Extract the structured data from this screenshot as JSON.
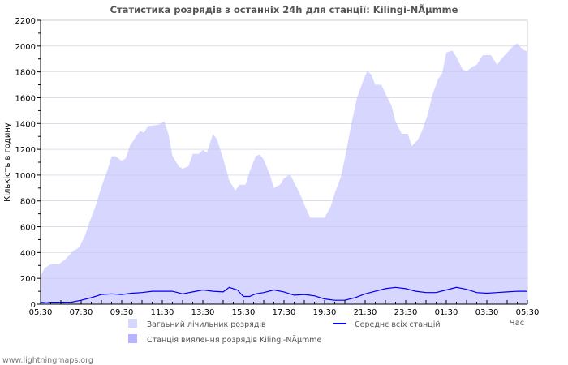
{
  "chart_data": {
    "type": "area",
    "title": "Статистика розрядів з останніх 24h для станції: Kilingi-NÃµmme",
    "xlabel": "Час",
    "ylabel": "Кількість в годину",
    "ylim": [
      0,
      2200
    ],
    "yticks": [
      0,
      200,
      400,
      600,
      800,
      1000,
      1200,
      1400,
      1600,
      1800,
      2000,
      2200
    ],
    "xtick_labels": [
      "05:30",
      "07:30",
      "09:30",
      "11:30",
      "13:30",
      "15:30",
      "17:30",
      "19:30",
      "21:30",
      "23:30",
      "01:30",
      "03:30",
      "05:30"
    ],
    "x_unit": "hours since 05:30",
    "xlim": [
      0,
      24
    ],
    "grid": true,
    "colors": {
      "total": "#d6d6ff",
      "station": "#b4b4ff",
      "average": "#0000ee"
    },
    "series": [
      {
        "name": "Загаьний лічильник розрядів",
        "kind": "area",
        "points": [
          [
            0,
            220
          ],
          [
            0.2,
            280
          ],
          [
            0.5,
            310
          ],
          [
            0.9,
            310
          ],
          [
            1.2,
            345
          ],
          [
            1.6,
            410
          ],
          [
            1.9,
            440
          ],
          [
            2.2,
            535
          ],
          [
            2.4,
            630
          ],
          [
            2.7,
            755
          ],
          [
            3.0,
            910
          ],
          [
            3.3,
            1040
          ],
          [
            3.5,
            1145
          ],
          [
            3.7,
            1145
          ],
          [
            4.0,
            1110
          ],
          [
            4.2,
            1130
          ],
          [
            4.4,
            1225
          ],
          [
            4.7,
            1300
          ],
          [
            4.9,
            1340
          ],
          [
            5.1,
            1330
          ],
          [
            5.3,
            1380
          ],
          [
            5.8,
            1390
          ],
          [
            6.1,
            1415
          ],
          [
            6.3,
            1320
          ],
          [
            6.5,
            1150
          ],
          [
            6.8,
            1070
          ],
          [
            7.0,
            1050
          ],
          [
            7.3,
            1070
          ],
          [
            7.5,
            1165
          ],
          [
            7.8,
            1165
          ],
          [
            8.0,
            1195
          ],
          [
            8.2,
            1175
          ],
          [
            8.5,
            1320
          ],
          [
            8.7,
            1275
          ],
          [
            9.0,
            1130
          ],
          [
            9.3,
            960
          ],
          [
            9.6,
            880
          ],
          [
            9.8,
            925
          ],
          [
            10.1,
            925
          ],
          [
            10.3,
            1025
          ],
          [
            10.6,
            1145
          ],
          [
            10.8,
            1160
          ],
          [
            11.0,
            1120
          ],
          [
            11.3,
            1005
          ],
          [
            11.5,
            900
          ],
          [
            11.8,
            925
          ],
          [
            12.0,
            975
          ],
          [
            12.3,
            1005
          ],
          [
            12.5,
            945
          ],
          [
            12.8,
            850
          ],
          [
            13.1,
            735
          ],
          [
            13.3,
            670
          ],
          [
            13.6,
            670
          ],
          [
            14.0,
            670
          ],
          [
            14.3,
            755
          ],
          [
            14.5,
            860
          ],
          [
            14.8,
            985
          ],
          [
            15.0,
            1130
          ],
          [
            15.3,
            1380
          ],
          [
            15.6,
            1600
          ],
          [
            15.9,
            1730
          ],
          [
            16.1,
            1805
          ],
          [
            16.3,
            1780
          ],
          [
            16.5,
            1700
          ],
          [
            16.8,
            1700
          ],
          [
            17.1,
            1600
          ],
          [
            17.3,
            1540
          ],
          [
            17.5,
            1415
          ],
          [
            17.8,
            1320
          ],
          [
            18.1,
            1320
          ],
          [
            18.3,
            1225
          ],
          [
            18.6,
            1275
          ],
          [
            18.8,
            1340
          ],
          [
            19.1,
            1475
          ],
          [
            19.3,
            1615
          ],
          [
            19.6,
            1745
          ],
          [
            19.8,
            1790
          ],
          [
            20.0,
            1950
          ],
          [
            20.3,
            1965
          ],
          [
            20.5,
            1915
          ],
          [
            20.8,
            1820
          ],
          [
            21.0,
            1805
          ],
          [
            21.3,
            1840
          ],
          [
            21.5,
            1855
          ],
          [
            21.8,
            1930
          ],
          [
            22.2,
            1930
          ],
          [
            22.5,
            1855
          ],
          [
            22.8,
            1915
          ],
          [
            23.1,
            1965
          ],
          [
            23.3,
            2000
          ],
          [
            23.5,
            2020
          ],
          [
            23.8,
            1970
          ],
          [
            24,
            1960
          ]
        ]
      },
      {
        "name": "Станція виялення розрядів Kilingi-NÃµmme",
        "kind": "area",
        "points": []
      },
      {
        "name": "Середнє всіх станцій",
        "kind": "line",
        "points": [
          [
            0,
            15
          ],
          [
            0.3,
            10
          ],
          [
            0.5,
            15
          ],
          [
            1.5,
            15
          ],
          [
            2.0,
            30
          ],
          [
            2.5,
            50
          ],
          [
            3.0,
            75
          ],
          [
            3.5,
            80
          ],
          [
            4.0,
            75
          ],
          [
            4.5,
            85
          ],
          [
            5.0,
            90
          ],
          [
            5.5,
            100
          ],
          [
            6.5,
            100
          ],
          [
            7.0,
            80
          ],
          [
            7.5,
            95
          ],
          [
            8.0,
            110
          ],
          [
            8.5,
            100
          ],
          [
            9.0,
            95
          ],
          [
            9.3,
            130
          ],
          [
            9.7,
            110
          ],
          [
            10.0,
            60
          ],
          [
            10.3,
            60
          ],
          [
            10.6,
            80
          ],
          [
            11.0,
            90
          ],
          [
            11.5,
            110
          ],
          [
            12.0,
            95
          ],
          [
            12.5,
            70
          ],
          [
            13.0,
            75
          ],
          [
            13.5,
            65
          ],
          [
            14.0,
            40
          ],
          [
            14.5,
            30
          ],
          [
            15.0,
            30
          ],
          [
            15.5,
            50
          ],
          [
            16.0,
            80
          ],
          [
            16.5,
            100
          ],
          [
            17.0,
            120
          ],
          [
            17.5,
            130
          ],
          [
            18.0,
            120
          ],
          [
            18.5,
            100
          ],
          [
            19.0,
            90
          ],
          [
            19.5,
            90
          ],
          [
            20.0,
            110
          ],
          [
            20.5,
            130
          ],
          [
            21.0,
            115
          ],
          [
            21.5,
            90
          ],
          [
            22.0,
            85
          ],
          [
            22.5,
            90
          ],
          [
            23.0,
            95
          ],
          [
            23.5,
            100
          ],
          [
            24,
            100
          ]
        ]
      }
    ]
  },
  "footer": "www.lightningmaps.org"
}
